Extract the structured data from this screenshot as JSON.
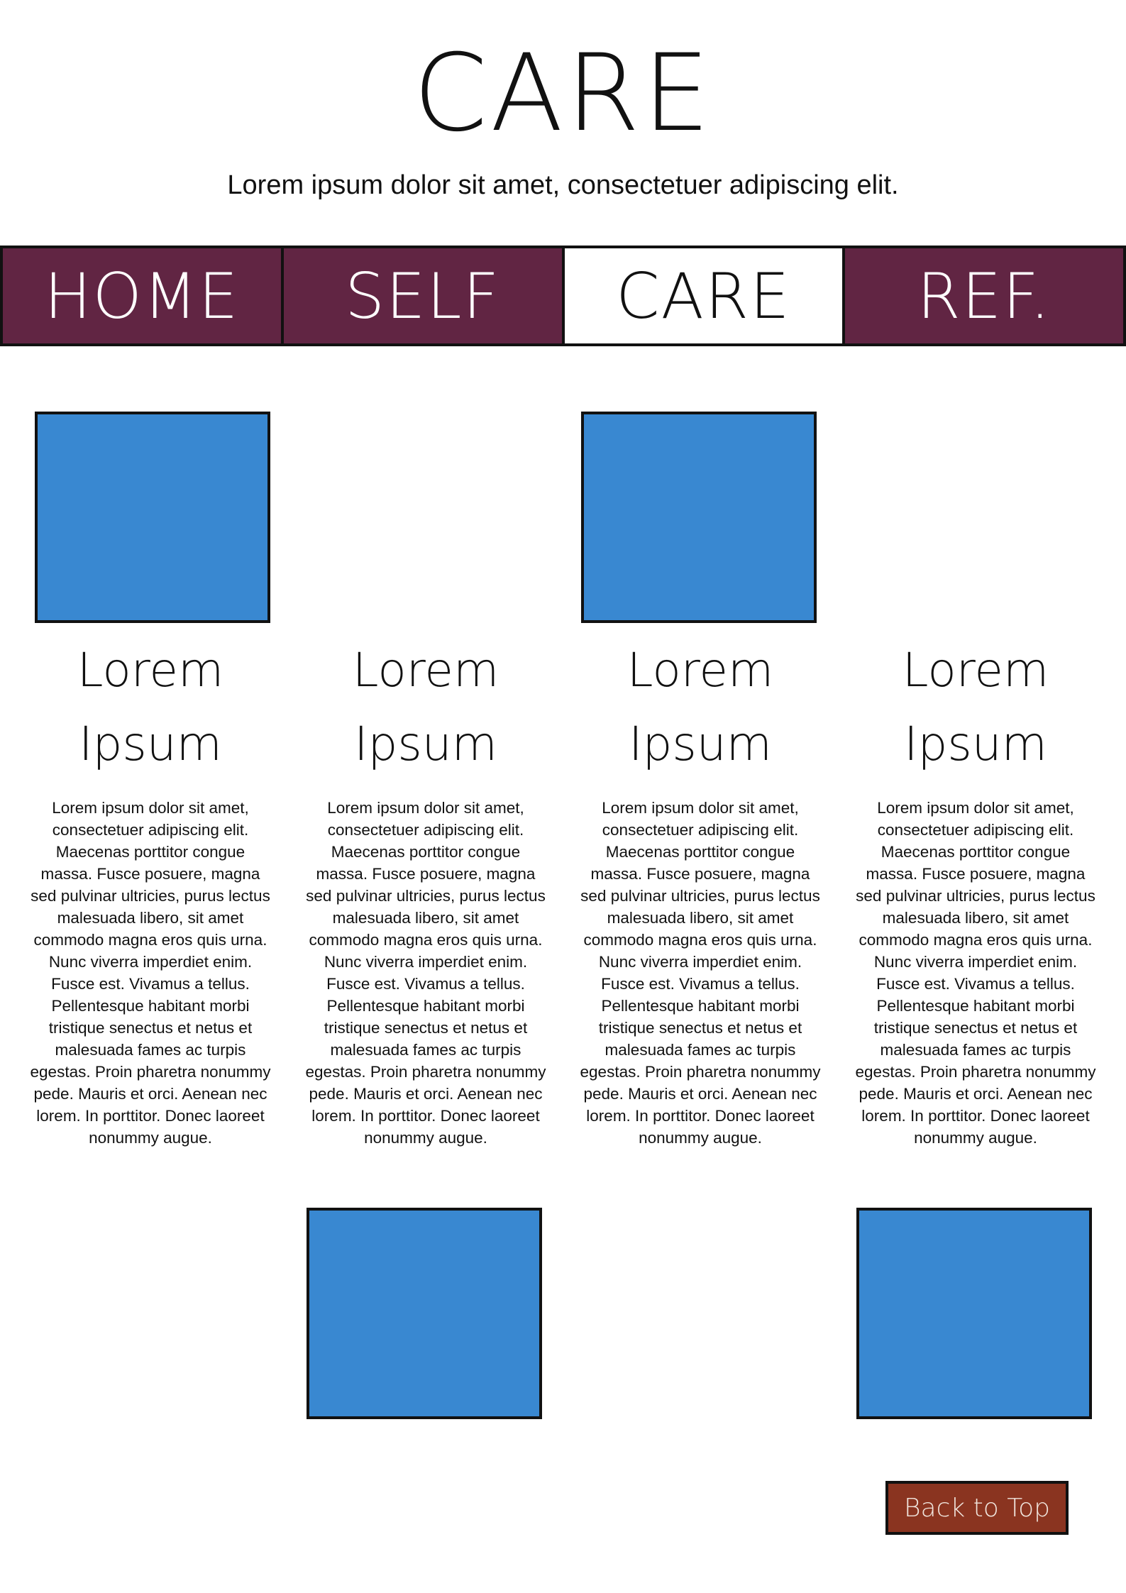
{
  "header": {
    "title": "CARE",
    "subtitle": "Lorem ipsum dolor sit amet, consectetuer adipiscing elit."
  },
  "nav": {
    "tabs": [
      {
        "label": "HOME",
        "active": false
      },
      {
        "label": "SELF",
        "active": false
      },
      {
        "label": "CARE",
        "active": true
      },
      {
        "label": "REF.",
        "active": false
      }
    ]
  },
  "columns": [
    {
      "title_line1": "Lorem",
      "title_line2": "Ipsum",
      "body": "Lorem ipsum dolor sit amet, consectetuer adipiscing elit. Maecenas porttitor congue massa. Fusce posuere, magna sed pulvinar ultricies, purus lectus malesuada libero, sit amet commodo magna eros quis urna. Nunc viverra imperdiet enim. Fusce est. Vivamus a tellus. Pellentesque habitant morbi tristique senectus et netus et malesuada fames ac turpis egestas. Proin pharetra nonummy pede. Mauris et orci. Aenean nec lorem. In porttitor. Donec laoreet nonummy augue."
    },
    {
      "title_line1": "Lorem",
      "title_line2": "Ipsum",
      "body": "Lorem ipsum dolor sit amet, consectetuer adipiscing elit. Maecenas porttitor congue massa. Fusce posuere, magna sed pulvinar ultricies, purus lectus malesuada libero, sit amet commodo magna eros quis urna. Nunc viverra imperdiet enim. Fusce est. Vivamus a tellus. Pellentesque habitant morbi tristique senectus et netus et malesuada fames ac turpis egestas. Proin pharetra nonummy pede. Mauris et orci. Aenean nec lorem. In porttitor. Donec laoreet nonummy augue."
    },
    {
      "title_line1": "Lorem",
      "title_line2": "Ipsum",
      "body": "Lorem ipsum dolor sit amet, consectetuer adipiscing elit. Maecenas porttitor congue massa. Fusce posuere, magna sed pulvinar ultricies, purus lectus malesuada libero, sit amet commodo magna eros quis urna. Nunc viverra imperdiet enim. Fusce est. Vivamus a tellus. Pellentesque habitant morbi tristique senectus et netus et malesuada fames ac turpis egestas. Proin pharetra nonummy pede. Mauris et orci. Aenean nec lorem. In porttitor. Donec laoreet nonummy augue."
    },
    {
      "title_line1": "Lorem",
      "title_line2": "Ipsum",
      "body": "Lorem ipsum dolor sit amet, consectetuer adipiscing elit. Maecenas porttitor congue massa. Fusce posuere, magna sed pulvinar ultricies, purus lectus malesuada libero, sit amet commodo magna eros quis urna. Nunc viverra imperdiet enim. Fusce est. Vivamus a tellus. Pellentesque habitant morbi tristique senectus et netus et malesuada fames ac turpis egestas. Proin pharetra nonummy pede. Mauris et orci. Aenean nec lorem. In porttitor. Donec laoreet nonummy augue."
    }
  ],
  "footer": {
    "back_to_top_label": "Back to Top"
  },
  "colors": {
    "nav_inactive": "#612543",
    "image_placeholder": "#3988d1",
    "back_button": "#8a3420"
  }
}
